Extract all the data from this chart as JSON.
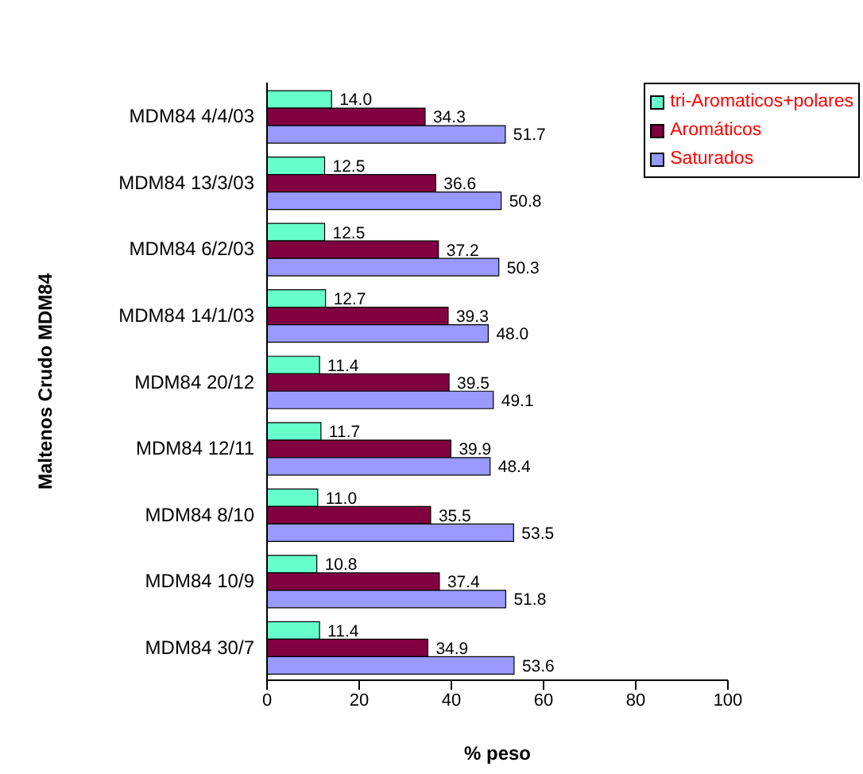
{
  "chart_data": {
    "type": "bar",
    "orientation": "horizontal",
    "ylabel": "Maltenos Crudo MDM84",
    "xlabel": "% peso",
    "categories": [
      "MDM84 4/4/03",
      "MDM84 13/3/03",
      "MDM84 6/2/03",
      "MDM84 14/1/03",
      "MDM84 20/12",
      "MDM84 12/11",
      "MDM84 8/10",
      "MDM84 10/9",
      "MDM84 30/7"
    ],
    "series": [
      {
        "name": "tri-Aromaticos+polares",
        "color": "#66ffcc",
        "values": [
          14.0,
          12.5,
          12.5,
          12.7,
          11.4,
          11.7,
          11.0,
          10.8,
          11.4
        ],
        "value_labels": [
          "14.0",
          "12.5",
          "12.5",
          "12.7",
          "11.4",
          "11.7",
          "11.0",
          "10.8",
          "11.4"
        ]
      },
      {
        "name": "Aromáticos",
        "color": "#800040",
        "values": [
          34.3,
          36.6,
          37.2,
          39.3,
          39.5,
          39.9,
          35.5,
          37.4,
          34.9
        ],
        "value_labels": [
          "34.3",
          "36.6",
          "37.2",
          "39.3",
          "39.5",
          "39.9",
          "35.5",
          "37.4",
          "34.9"
        ]
      },
      {
        "name": "Saturados",
        "color": "#9999ff",
        "values": [
          51.7,
          50.8,
          50.3,
          48.0,
          49.1,
          48.4,
          53.5,
          51.8,
          53.6
        ],
        "value_labels": [
          "51.7",
          "50.8",
          "50.3",
          "48.0",
          "49.1",
          "48.4",
          "53.5",
          "51.8",
          "53.6"
        ]
      }
    ],
    "xlim": [
      0,
      100
    ],
    "xticks": [
      0,
      20,
      40,
      60,
      80,
      100
    ],
    "grid": false,
    "legend": "top right"
  }
}
